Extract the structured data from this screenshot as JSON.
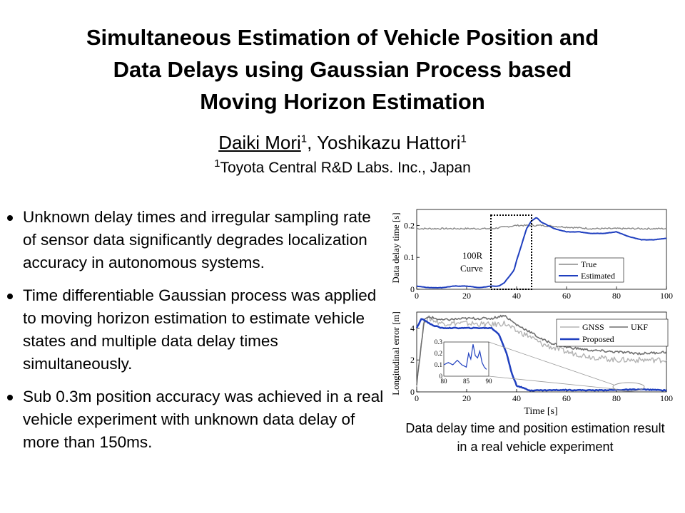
{
  "title_lines": [
    "Simultaneous Estimation of Vehicle Position and",
    "Data Delays using Gaussian Process based",
    "Moving Horizon Estimation"
  ],
  "authors": {
    "author1": "Daiki Mori",
    "author1_sup": "1",
    "separator": ", ",
    "author2": "Yoshikazu Hattori",
    "author2_sup": "1"
  },
  "affiliation": {
    "sup": "1",
    "text": "Toyota Central R&D Labs. Inc., Japan"
  },
  "bullets": [
    "Unknown delay times and irregular sampling rate of sensor data significantly degrades localization accuracy in autonomous systems.",
    "Time differentiable Gaussian process was applied to moving horizon estimation to estimate vehicle states and multiple data delay times simultaneously.",
    "Sub 0.3m position accuracy was achieved in a real vehicle experiment with unknown data delay of more than 150ms."
  ],
  "caption": "Data delay time and position estimation result in a real vehicle experiment",
  "colors": {
    "estimated": "#1f3fbf",
    "true": "#888888",
    "gnss": "#b3b3b3",
    "ukf": "#6e6e6e"
  },
  "chart_data": [
    {
      "type": "line",
      "ylabel": "Data delay time [s]",
      "xlim": [
        0,
        100
      ],
      "ylim": [
        0,
        0.25
      ],
      "xticks": [
        "0",
        "20",
        "40",
        "60",
        "80",
        "100"
      ],
      "yticks": [
        "0",
        "0.1",
        "0.2"
      ],
      "annotation": [
        "100R",
        "Curve"
      ],
      "legend": [
        "True",
        "Estimated"
      ],
      "legend_position": "bottom-right",
      "series": [
        {
          "name": "True",
          "x": [
            0,
            10,
            20,
            30,
            35,
            40,
            45,
            50,
            60,
            70,
            80,
            90,
            100
          ],
          "y": [
            0.19,
            0.19,
            0.19,
            0.19,
            0.195,
            0.2,
            0.2,
            0.2,
            0.195,
            0.19,
            0.19,
            0.19,
            0.19
          ]
        },
        {
          "name": "Estimated",
          "x": [
            0,
            5,
            10,
            15,
            20,
            25,
            30,
            33,
            35,
            37,
            39,
            40,
            42,
            44,
            46,
            48,
            50,
            55,
            60,
            65,
            70,
            75,
            80,
            85,
            90,
            95,
            100
          ],
          "y": [
            0.01,
            0.005,
            0.005,
            0.01,
            0.01,
            0.005,
            0.01,
            0.01,
            0.02,
            0.04,
            0.06,
            0.09,
            0.14,
            0.19,
            0.215,
            0.225,
            0.21,
            0.19,
            0.18,
            0.18,
            0.175,
            0.175,
            0.18,
            0.165,
            0.155,
            0.155,
            0.16
          ]
        }
      ]
    },
    {
      "type": "line",
      "ylabel": "Longitudinal error [m]",
      "xlabel": "Time [s]",
      "xlim": [
        0,
        100
      ],
      "ylim": [
        0,
        5
      ],
      "xticks": [
        "0",
        "20",
        "40",
        "60",
        "80",
        "100"
      ],
      "yticks": [
        "0",
        "2",
        "4"
      ],
      "legend": [
        "GNSS",
        "UKF",
        "Proposed"
      ],
      "legend_position": "top-right",
      "series": [
        {
          "name": "GNSS",
          "x": [
            0,
            3,
            5,
            10,
            20,
            30,
            35,
            40,
            45,
            50,
            60,
            70,
            80,
            90,
            100
          ],
          "y": [
            0.5,
            4.5,
            4.6,
            4.3,
            4.3,
            4.2,
            4.3,
            3.8,
            3.5,
            3.0,
            2.5,
            2.2,
            2.0,
            2.0,
            2.0
          ]
        },
        {
          "name": "UKF",
          "x": [
            0,
            3,
            5,
            10,
            20,
            30,
            35,
            40,
            45,
            50,
            55,
            60,
            70,
            80,
            90,
            100
          ],
          "y": [
            0.5,
            4.5,
            4.7,
            4.5,
            4.6,
            4.6,
            4.8,
            4.2,
            3.8,
            3.3,
            3.0,
            2.8,
            2.6,
            2.5,
            2.4,
            2.5
          ]
        },
        {
          "name": "Proposed",
          "x": [
            0,
            2,
            4,
            6,
            10,
            20,
            30,
            33,
            36,
            38,
            40,
            45,
            50,
            60,
            70,
            80,
            90,
            100
          ],
          "y": [
            4.0,
            4.6,
            4.4,
            4.2,
            4.0,
            4.0,
            4.0,
            3.6,
            2.4,
            1.2,
            0.4,
            0.1,
            0.1,
            0.12,
            0.1,
            0.12,
            0.15,
            0.1
          ]
        }
      ],
      "inset": {
        "xlim": [
          80,
          90
        ],
        "ylim": [
          0,
          0.3
        ],
        "xticks": [
          "80",
          "85",
          "90"
        ],
        "yticks": [
          "0",
          "0.1",
          "0.2",
          "0.3"
        ],
        "x": [
          80,
          81,
          82,
          83,
          84,
          85,
          85.5,
          86,
          86.5,
          87,
          87.5,
          88,
          88.5,
          89,
          89.5
        ],
        "y": [
          0.1,
          0.12,
          0.1,
          0.14,
          0.1,
          0.08,
          0.2,
          0.15,
          0.28,
          0.18,
          0.16,
          0.22,
          0.12,
          0.08,
          0.06
        ]
      }
    }
  ]
}
